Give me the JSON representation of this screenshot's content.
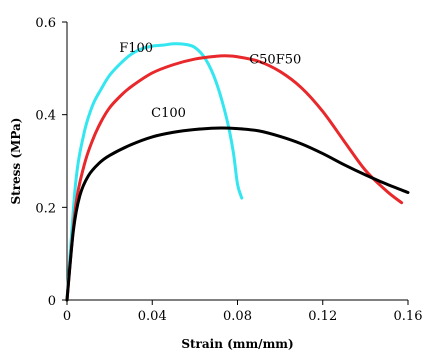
{
  "chart_data": {
    "type": "line",
    "title": "",
    "xlabel": "Strain (mm/mm)",
    "ylabel": "Stress (MPa)",
    "xlim": [
      0,
      0.16
    ],
    "ylim": [
      0,
      0.6
    ],
    "x_ticks": [
      "0",
      "0.04",
      "0.08",
      "0.12",
      "0.16"
    ],
    "y_ticks": [
      "0",
      "0.2",
      "0.4",
      "0.6"
    ],
    "grid": false,
    "legend": "none",
    "series": [
      {
        "name": "F100",
        "color": "#33e6f0",
        "points": [
          [
            0,
            0
          ],
          [
            0.004,
            0.25
          ],
          [
            0.008,
            0.36
          ],
          [
            0.012,
            0.42
          ],
          [
            0.016,
            0.455
          ],
          [
            0.02,
            0.485
          ],
          [
            0.025,
            0.51
          ],
          [
            0.03,
            0.53
          ],
          [
            0.035,
            0.542
          ],
          [
            0.04,
            0.548
          ],
          [
            0.045,
            0.55
          ],
          [
            0.05,
            0.553
          ],
          [
            0.055,
            0.552
          ],
          [
            0.06,
            0.545
          ],
          [
            0.065,
            0.52
          ],
          [
            0.07,
            0.47
          ],
          [
            0.075,
            0.39
          ],
          [
            0.078,
            0.32
          ],
          [
            0.08,
            0.25
          ],
          [
            0.082,
            0.22
          ]
        ]
      },
      {
        "name": "C50F50",
        "color": "#e8282b",
        "points": [
          [
            0,
            0
          ],
          [
            0.004,
            0.2
          ],
          [
            0.008,
            0.29
          ],
          [
            0.012,
            0.345
          ],
          [
            0.016,
            0.385
          ],
          [
            0.02,
            0.415
          ],
          [
            0.025,
            0.44
          ],
          [
            0.03,
            0.46
          ],
          [
            0.04,
            0.49
          ],
          [
            0.05,
            0.508
          ],
          [
            0.06,
            0.52
          ],
          [
            0.07,
            0.526
          ],
          [
            0.075,
            0.527
          ],
          [
            0.08,
            0.525
          ],
          [
            0.09,
            0.515
          ],
          [
            0.1,
            0.493
          ],
          [
            0.11,
            0.458
          ],
          [
            0.12,
            0.407
          ],
          [
            0.13,
            0.343
          ],
          [
            0.14,
            0.28
          ],
          [
            0.15,
            0.235
          ],
          [
            0.157,
            0.21
          ]
        ]
      },
      {
        "name": "C100",
        "color": "#000000",
        "points": [
          [
            0,
            0
          ],
          [
            0.003,
            0.15
          ],
          [
            0.006,
            0.225
          ],
          [
            0.01,
            0.268
          ],
          [
            0.015,
            0.295
          ],
          [
            0.02,
            0.312
          ],
          [
            0.03,
            0.335
          ],
          [
            0.04,
            0.352
          ],
          [
            0.05,
            0.362
          ],
          [
            0.06,
            0.368
          ],
          [
            0.07,
            0.371
          ],
          [
            0.08,
            0.37
          ],
          [
            0.09,
            0.365
          ],
          [
            0.1,
            0.353
          ],
          [
            0.11,
            0.337
          ],
          [
            0.12,
            0.316
          ],
          [
            0.13,
            0.292
          ],
          [
            0.14,
            0.27
          ],
          [
            0.15,
            0.25
          ],
          [
            0.16,
            0.232
          ]
        ]
      }
    ],
    "annotations": [
      {
        "text": "F100",
        "x": 0.0245,
        "y": 0.535
      },
      {
        "text": "C50F50",
        "x": 0.0855,
        "y": 0.51
      },
      {
        "text": "C100",
        "x": 0.0395,
        "y": 0.395
      }
    ]
  }
}
